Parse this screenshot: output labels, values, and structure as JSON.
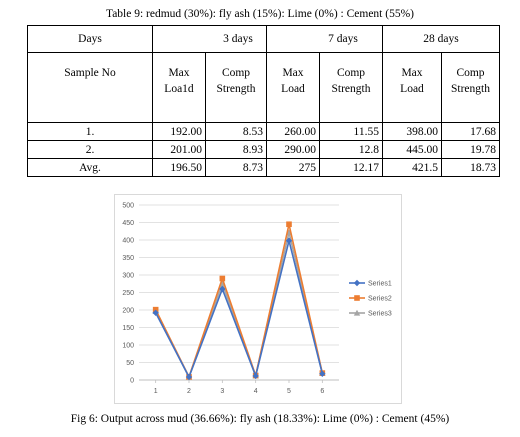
{
  "table_caption": "Table 9: redmud (30%): fly ash (15%): Lime (0%) : Cement (55%)",
  "figure_caption": "Fig 6: Output across mud (36.66%): fly ash (18.33%): Lime (0%) : Cement (45%)",
  "table": {
    "days_label": "Days",
    "day_groups": [
      "3 days",
      "7 days",
      "28 days"
    ],
    "sample_label": "Sample No",
    "col_labels": [
      [
        "Max",
        "Loa1d"
      ],
      [
        "Comp",
        "Strength"
      ],
      [
        "Max",
        "Load"
      ],
      [
        "Comp",
        "Strength"
      ],
      [
        "Max",
        "Load"
      ],
      [
        "Comp",
        "Strength"
      ]
    ],
    "rows": [
      {
        "label": "1.",
        "cells": [
          "192.00",
          "8.53",
          "260.00",
          "11.55",
          "398.00",
          "17.68"
        ]
      },
      {
        "label": "2.",
        "cells": [
          "201.00",
          "8.93",
          "290.00",
          "12.8",
          "445.00",
          "19.78"
        ]
      },
      {
        "label": "Avg.",
        "cells": [
          "196.50",
          "8.73",
          "275",
          "12.17",
          "421.5",
          "18.73"
        ]
      }
    ]
  },
  "chart_data": {
    "type": "line",
    "x": [
      1,
      2,
      3,
      4,
      5,
      6
    ],
    "ylim": [
      0,
      500
    ],
    "yticks": [
      0,
      50,
      100,
      150,
      200,
      250,
      300,
      350,
      400,
      450,
      500
    ],
    "grid": true,
    "legend_position": "right",
    "series": [
      {
        "name": "Series1",
        "values": [
          192,
          8.53,
          260,
          11.55,
          398,
          17.68
        ],
        "color": "#4472c4",
        "marker": "diamond"
      },
      {
        "name": "Series2",
        "values": [
          201,
          8.93,
          290,
          12.8,
          445,
          19.78
        ],
        "color": "#ed7d31",
        "marker": "square"
      },
      {
        "name": "Series3",
        "values": [
          196.5,
          8.73,
          275,
          12.17,
          421.5,
          18.73
        ],
        "color": "#a5a5a5",
        "marker": "triangle"
      }
    ]
  }
}
